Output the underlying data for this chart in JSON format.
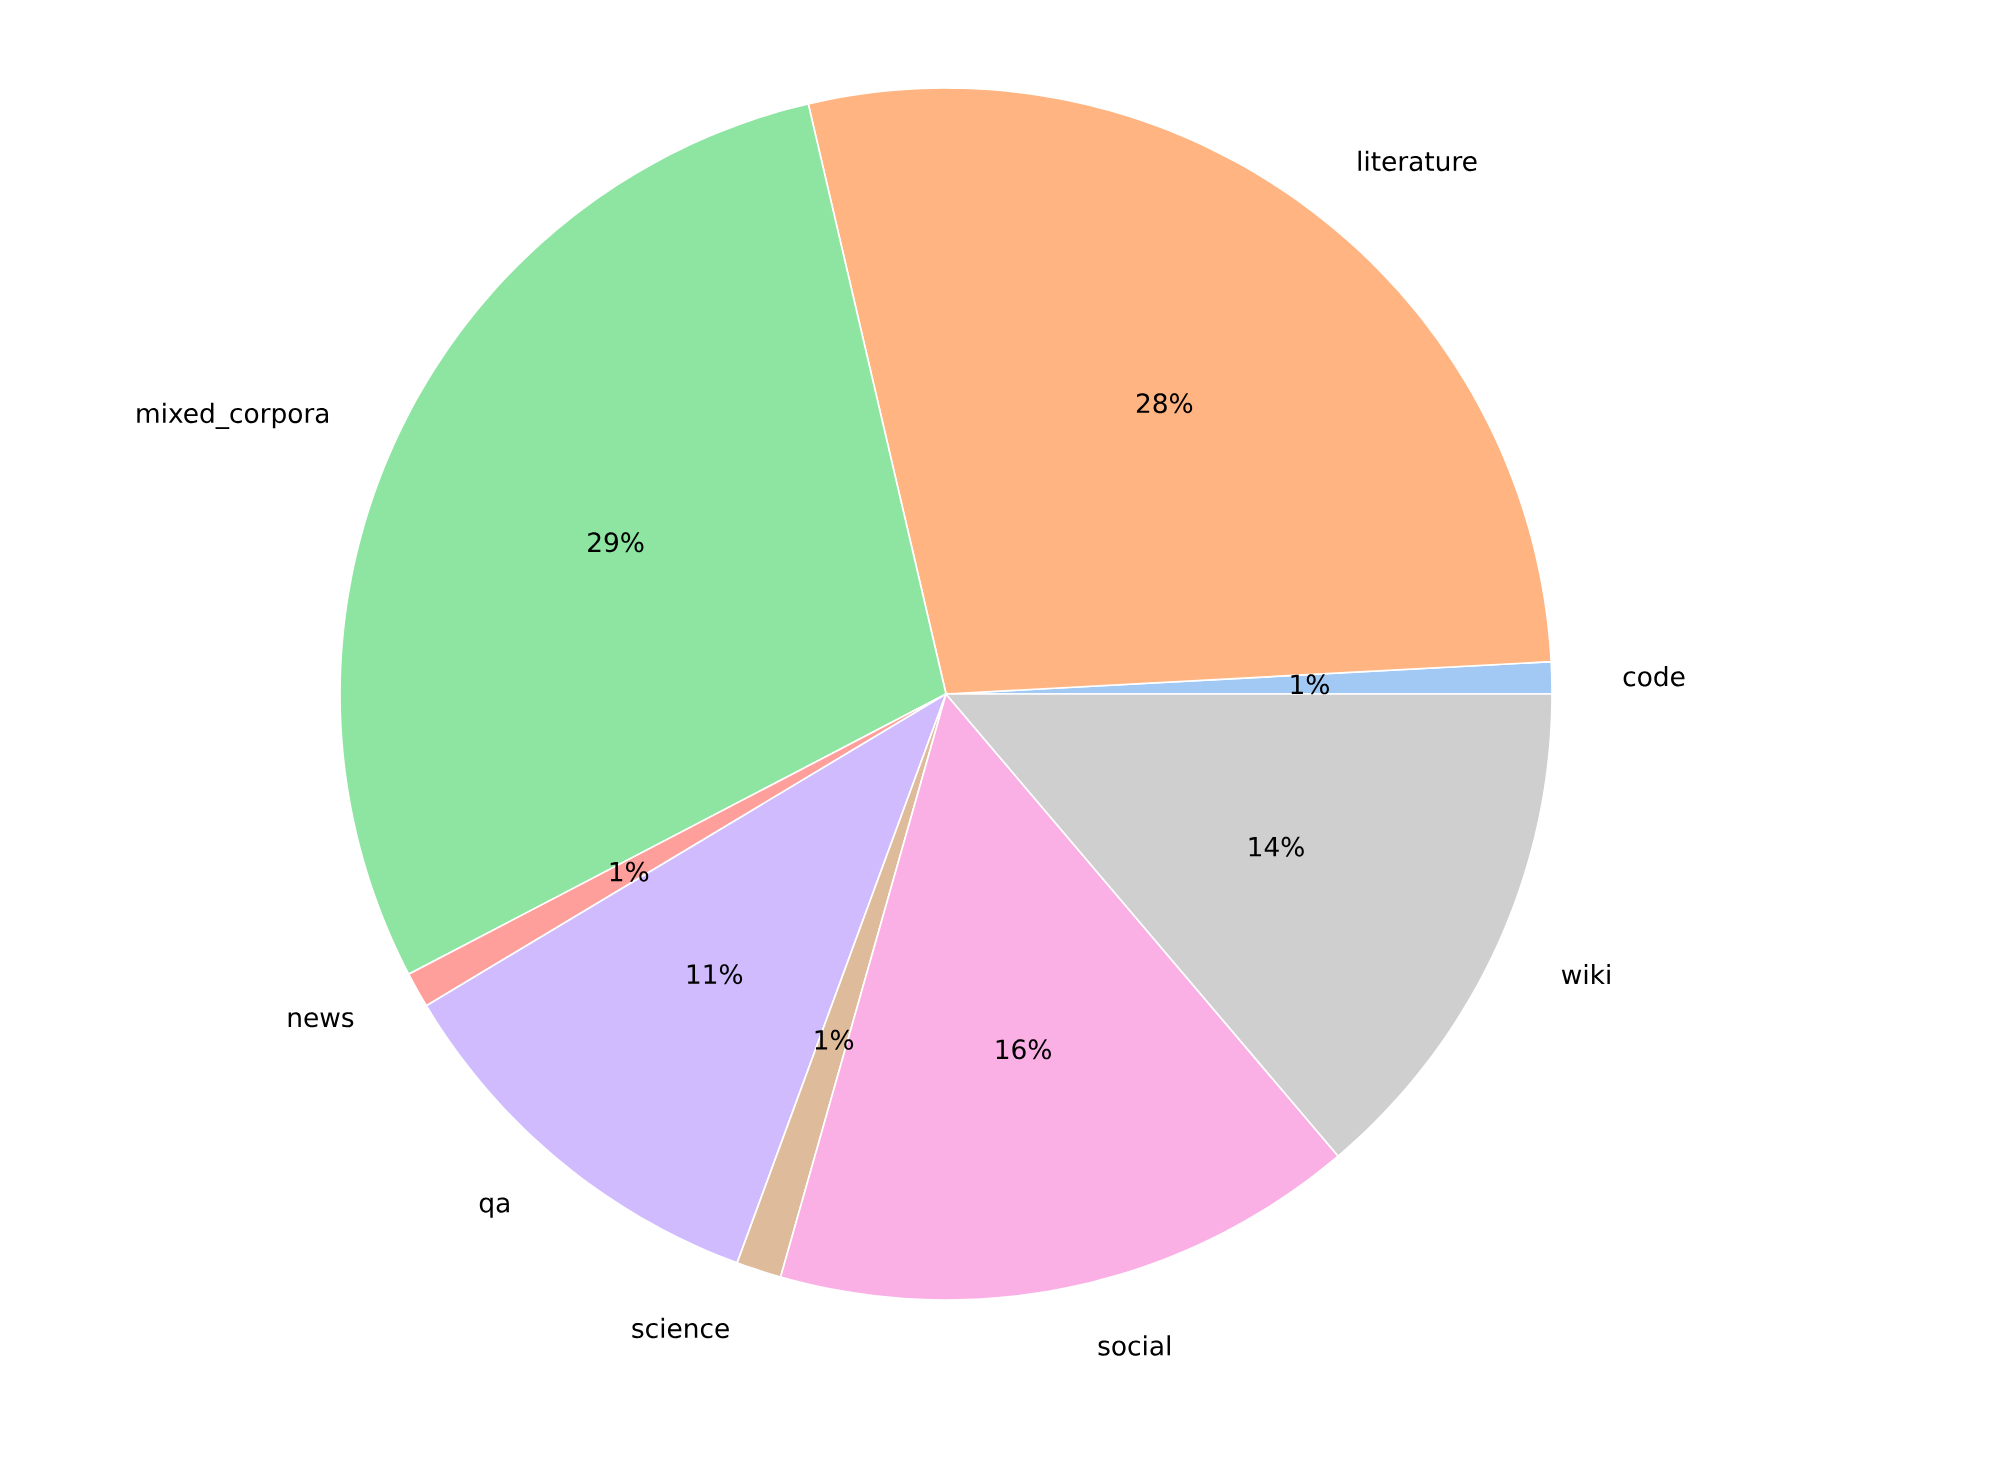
{
  "chart_data": {
    "type": "pie",
    "categories": [
      "code",
      "literature",
      "mixed_corpora",
      "news",
      "qa",
      "science",
      "social",
      "wiki"
    ],
    "values": [
      0.85,
      27.8,
      29.0,
      0.95,
      10.8,
      1.2,
      15.6,
      13.8
    ],
    "value_labels": [
      "1%",
      "28%",
      "29%",
      "1%",
      "11%",
      "1%",
      "16%",
      "14%"
    ],
    "colors": [
      "#a1c9f4",
      "#ffb482",
      "#8de5a1",
      "#ff9f9b",
      "#d0bbff",
      "#debb9b",
      "#fab0e4",
      "#cfcfcf"
    ]
  }
}
